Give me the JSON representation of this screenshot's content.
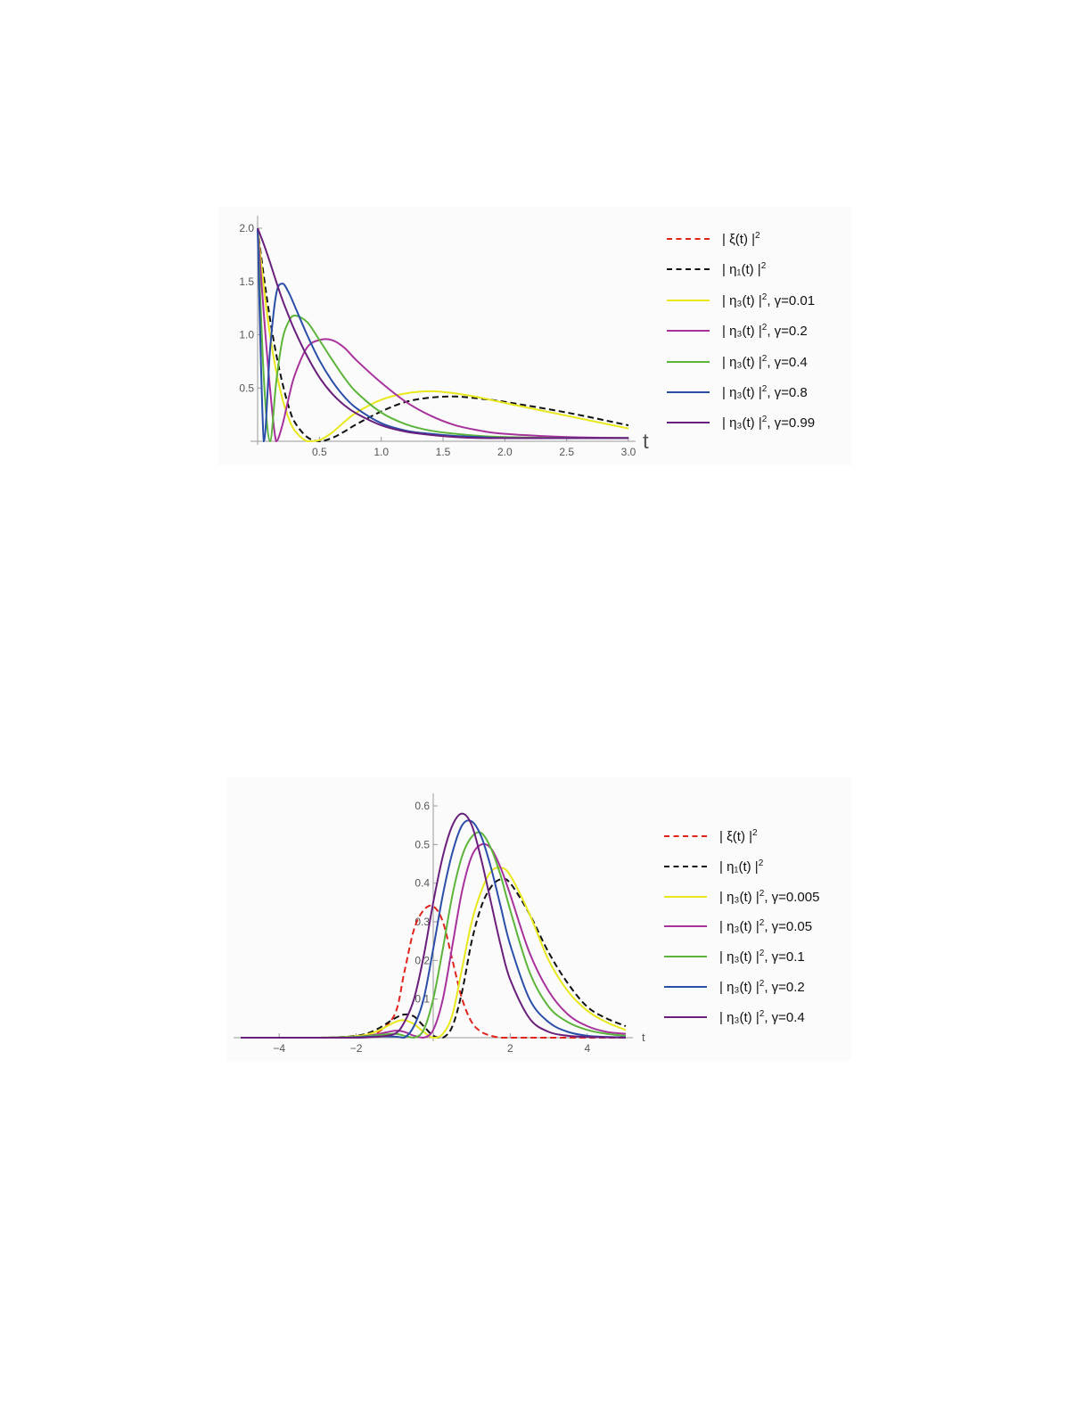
{
  "chart_data": [
    {
      "type": "line",
      "title": "",
      "xlabel": "t",
      "ylabel": "",
      "xlim": [
        0,
        3.0
      ],
      "ylim": [
        0,
        2.0
      ],
      "x_ticks": [
        "0.5",
        "1.0",
        "1.5",
        "2.0",
        "2.5",
        "3.0"
      ],
      "y_ticks": [
        "0.5",
        "1.0",
        "1.5",
        "2.0"
      ],
      "grid": false,
      "legend_position": "right",
      "x": [
        0,
        0.05,
        0.1,
        0.15,
        0.2,
        0.25,
        0.3,
        0.4,
        0.5,
        0.6,
        0.7,
        0.8,
        1.0,
        1.2,
        1.4,
        1.6,
        1.8,
        2.0,
        2.5,
        3.0
      ],
      "series": [
        {
          "name": "|ξ(t)|²",
          "color": "#e0241c",
          "dash": true,
          "values": []
        },
        {
          "name": "|η1(t)|²",
          "color": "#111111",
          "dash": true,
          "values": [
            2.0,
            1.55,
            1.15,
            0.82,
            0.55,
            0.33,
            0.18,
            0.04,
            0.0,
            0.03,
            0.09,
            0.16,
            0.28,
            0.37,
            0.41,
            0.42,
            0.4,
            0.37,
            0.27,
            0.15
          ]
        },
        {
          "name": "|η3(t)|², γ=0.01",
          "color": "#e8e81c",
          "dash": false,
          "values": [
            2.0,
            1.45,
            1.0,
            0.66,
            0.4,
            0.22,
            0.1,
            0.0,
            0.01,
            0.08,
            0.18,
            0.27,
            0.39,
            0.45,
            0.47,
            0.45,
            0.41,
            0.36,
            0.24,
            0.12
          ]
        },
        {
          "name": "|η3(t)|², γ=0.2",
          "color": "#a8329c",
          "dash": false,
          "values": [
            2.0,
            1.2,
            0.5,
            0.0,
            0.15,
            0.4,
            0.62,
            0.88,
            0.95,
            0.95,
            0.88,
            0.76,
            0.55,
            0.37,
            0.24,
            0.15,
            0.1,
            0.07,
            0.04,
            0.03
          ]
        },
        {
          "name": "|η3(t)|², γ=0.4",
          "color": "#5cb53a",
          "dash": false,
          "values": [
            2.0,
            0.6,
            0.0,
            0.55,
            0.95,
            1.12,
            1.18,
            1.12,
            0.95,
            0.77,
            0.6,
            0.46,
            0.27,
            0.16,
            0.1,
            0.07,
            0.05,
            0.04,
            0.03,
            0.03
          ]
        },
        {
          "name": "|η3(t)|², γ=0.8",
          "color": "#2a4ea8",
          "dash": false,
          "values": [
            2.0,
            0.0,
            0.85,
            1.38,
            1.48,
            1.4,
            1.27,
            1.0,
            0.76,
            0.57,
            0.42,
            0.31,
            0.17,
            0.1,
            0.07,
            0.05,
            0.04,
            0.03,
            0.03,
            0.03
          ]
        },
        {
          "name": "|η3(t)|², γ=0.99",
          "color": "#6a1f7c",
          "dash": false,
          "values": [
            2.0,
            1.85,
            1.68,
            1.5,
            1.33,
            1.18,
            1.04,
            0.8,
            0.6,
            0.45,
            0.34,
            0.26,
            0.15,
            0.09,
            0.06,
            0.04,
            0.03,
            0.03,
            0.03,
            0.03
          ]
        }
      ]
    },
    {
      "type": "line",
      "title": "",
      "xlabel": "t",
      "ylabel": "",
      "xlim": [
        -5,
        5
      ],
      "ylim": [
        0,
        0.6
      ],
      "x_ticks": [
        "−4",
        "−2",
        "2",
        "4"
      ],
      "y_ticks": [
        "0.1",
        "0.2",
        "0.3",
        "0.4",
        "0.5",
        "0.6"
      ],
      "grid": false,
      "legend_position": "right",
      "x": [
        -5,
        -3,
        -2,
        -1.5,
        -1,
        -0.75,
        -0.5,
        -0.25,
        0,
        0.25,
        0.5,
        0.75,
        1,
        1.25,
        1.5,
        1.75,
        2,
        2.5,
        3,
        3.5,
        4,
        4.5,
        5
      ],
      "series": [
        {
          "name": "|ξ(t)|²",
          "color": "#e0241c",
          "dash": true,
          "values": [
            0,
            0,
            0.0,
            0.01,
            0.06,
            0.17,
            0.28,
            0.33,
            0.34,
            0.3,
            0.2,
            0.1,
            0.04,
            0.015,
            0.005,
            0,
            0,
            0,
            0,
            0,
            0,
            0,
            0
          ]
        },
        {
          "name": "|η1(t)|²",
          "color": "#111111",
          "dash": true,
          "values": [
            0,
            0,
            0.005,
            0.02,
            0.05,
            0.06,
            0.055,
            0.03,
            0.005,
            0.0,
            0.03,
            0.12,
            0.25,
            0.34,
            0.39,
            0.41,
            0.4,
            0.32,
            0.22,
            0.14,
            0.08,
            0.05,
            0.03
          ]
        },
        {
          "name": "|η3(t)|², γ=0.005",
          "color": "#e8e81c",
          "dash": false,
          "values": [
            0,
            0,
            0.004,
            0.015,
            0.04,
            0.045,
            0.035,
            0.015,
            0.0,
            0.01,
            0.06,
            0.18,
            0.3,
            0.38,
            0.43,
            0.44,
            0.42,
            0.32,
            0.2,
            0.12,
            0.07,
            0.04,
            0.02
          ]
        },
        {
          "name": "|η3(t)|², γ=0.05",
          "color": "#a8329c",
          "dash": false,
          "values": [
            0,
            0,
            0.002,
            0.008,
            0.018,
            0.015,
            0.005,
            0.0,
            0.02,
            0.1,
            0.24,
            0.38,
            0.47,
            0.5,
            0.49,
            0.44,
            0.37,
            0.22,
            0.12,
            0.06,
            0.03,
            0.015,
            0.01
          ]
        },
        {
          "name": "|η3(t)|², γ=0.1",
          "color": "#5cb53a",
          "dash": false,
          "values": [
            0,
            0,
            0.002,
            0.006,
            0.01,
            0.005,
            0.0,
            0.02,
            0.1,
            0.23,
            0.37,
            0.47,
            0.52,
            0.53,
            0.49,
            0.42,
            0.33,
            0.17,
            0.08,
            0.04,
            0.02,
            0.01,
            0.005
          ]
        },
        {
          "name": "|η3(t)|², γ=0.2",
          "color": "#2a4ea8",
          "dash": false,
          "values": [
            0,
            0,
            0.001,
            0.003,
            0.003,
            0.0,
            0.03,
            0.1,
            0.23,
            0.37,
            0.48,
            0.55,
            0.56,
            0.52,
            0.44,
            0.34,
            0.24,
            0.1,
            0.04,
            0.015,
            0.005,
            0.002,
            0.001
          ]
        },
        {
          "name": "|η3(t)|², γ=0.4",
          "color": "#6a1f7c",
          "dash": false,
          "values": [
            0,
            0,
            0.0,
            0.002,
            0.01,
            0.04,
            0.1,
            0.21,
            0.35,
            0.47,
            0.55,
            0.58,
            0.55,
            0.46,
            0.35,
            0.24,
            0.15,
            0.05,
            0.015,
            0.005,
            0.002,
            0.001,
            0.0
          ]
        }
      ]
    }
  ],
  "figure1": {
    "axis_label_t": "t",
    "legend": [
      {
        "main": "| ξ(t) |",
        "sup": "2",
        "param": ""
      },
      {
        "main": "| η₁(t) |",
        "sup": "2",
        "param": ""
      },
      {
        "main": "| η₃(t) |",
        "sup": "2",
        "param": ", γ=0.01"
      },
      {
        "main": "| η₃(t) |",
        "sup": "2",
        "param": ", γ=0.2"
      },
      {
        "main": "| η₃(t) |",
        "sup": "2",
        "param": ", γ=0.4"
      },
      {
        "main": "| η₃(t) |",
        "sup": "2",
        "param": ", γ=0.8"
      },
      {
        "main": "| η₃(t) |",
        "sup": "2",
        "param": ", γ=0.99"
      }
    ]
  },
  "figure2": {
    "axis_label_t": "t",
    "legend": [
      {
        "main": "| ξ(t) |",
        "sup": "2",
        "param": ""
      },
      {
        "main": "| η₁(t) |",
        "sup": "2",
        "param": ""
      },
      {
        "main": "| η₃(t) |",
        "sup": "2",
        "param": ", γ=0.005"
      },
      {
        "main": "| η₃(t) |",
        "sup": "2",
        "param": ", γ=0.05"
      },
      {
        "main": "| η₃(t) |",
        "sup": "2",
        "param": ", γ=0.1"
      },
      {
        "main": "| η₃(t) |",
        "sup": "2",
        "param": ", γ=0.2"
      },
      {
        "main": "| η₃(t) |",
        "sup": "2",
        "param": ", γ=0.4"
      }
    ]
  }
}
